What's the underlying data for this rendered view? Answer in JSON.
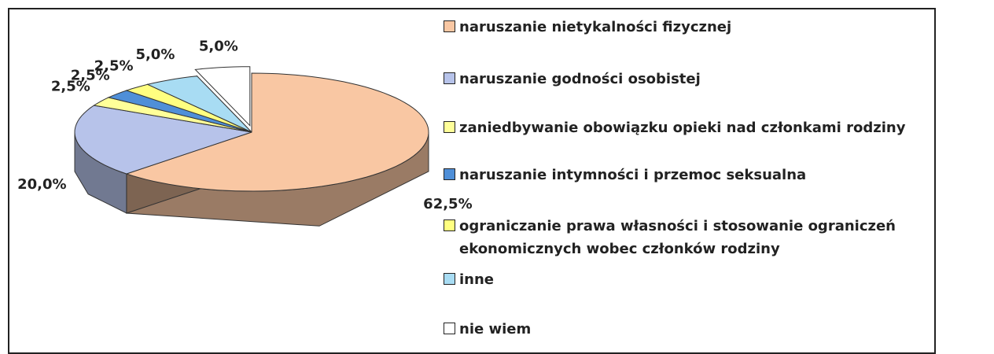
{
  "chart_data": {
    "type": "pie",
    "categories": [
      "naruszanie nietykalności fizycznej",
      "naruszanie godności osobistej",
      "zaniedbywanie obowiązku opieki nad członkami rodziny",
      "naruszanie intymności i przemoc seksualna",
      "ograniczanie prawa własności i stosowanie ograniczeń ekonomicznych wobec członków rodziny",
      "inne",
      "nie wiem"
    ],
    "values": [
      62.5,
      20.0,
      2.5,
      2.5,
      2.5,
      5.0,
      5.0
    ],
    "value_labels": [
      "62,5%",
      "20,0%",
      "2,5%",
      "2,5%",
      "2,5%",
      "5,0%",
      "5,0%"
    ],
    "colors": [
      "#f9c7a3",
      "#b7c3ea",
      "#ffff99",
      "#4f8fd8",
      "#ffff80",
      "#a8dcf3",
      "#ffffff"
    ],
    "legend": "right"
  }
}
